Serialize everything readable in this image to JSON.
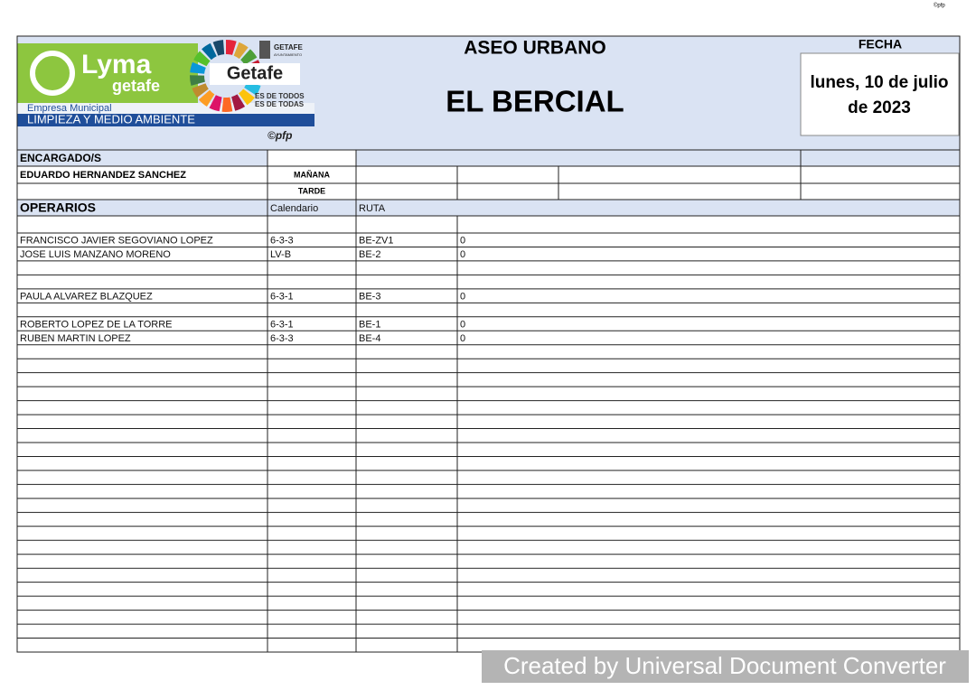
{
  "top_mark": "©pfp",
  "logo": {
    "brand": "Lyma",
    "brand_sub": "getafe",
    "company": "Empresa Municipal",
    "department": "LIMPIEZA Y MEDIO AMBIENTE",
    "city": "Getafe",
    "slogan_1": "ES DE TODOS",
    "slogan_2": "ES DE TODAS",
    "council": "GETAFE",
    "council_sub": "AYUNTAMIENTO",
    "copyright": "©pfp"
  },
  "header": {
    "title": "ASEO URBANO",
    "subtitle": "EL BERCIAL",
    "date_label": "FECHA",
    "date_line_1": "lunes, 10 de julio",
    "date_line_2": "de 2023"
  },
  "supervisors": {
    "label": "ENCARGADO/S",
    "name": "EDUARDO HERNANDEZ SANCHEZ",
    "shift_morning": "MAÑANA",
    "shift_afternoon": "TARDE"
  },
  "workers": {
    "label": "OPERARIOS",
    "columns": [
      "Calendario",
      "RUTA"
    ],
    "rows": [
      [
        "FRANCISCO JAVIER SEGOVIANO LOPEZ",
        "6-3-3",
        "BE-ZV1",
        0
      ],
      [
        "JOSE LUIS MANZANO MORENO",
        "LV-B",
        "BE-2",
        0
      ],
      [
        "PAULA ALVAREZ BLAZQUEZ",
        "6-3-1",
        "BE-3",
        0
      ],
      [
        "ROBERTO LOPEZ DE LA TORRE",
        "6-3-1",
        "BE-1",
        0
      ],
      [
        "RUBEN MARTIN LOPEZ",
        "6-3-3",
        "BE-4",
        0
      ]
    ]
  },
  "footer": "Created by Universal Document Converter"
}
